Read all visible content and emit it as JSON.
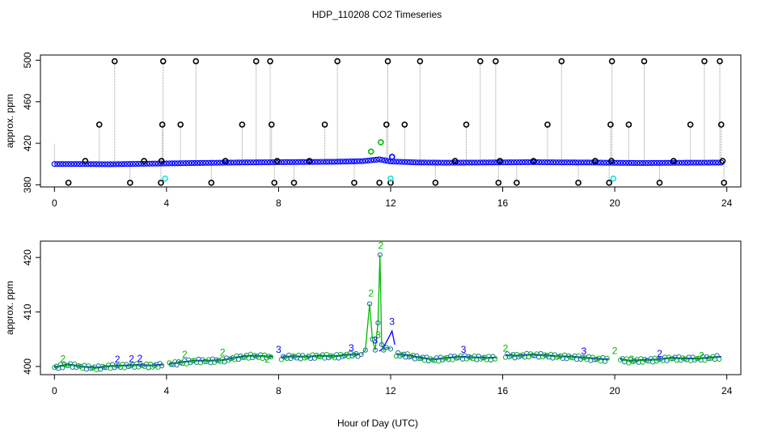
{
  "title": "HDP_110208  CO2 Timeseries",
  "xlabel": "Hour of Day (UTC)",
  "chart_data": [
    {
      "type": "scatter",
      "title": "HDP_110208  CO2 Timeseries",
      "ylabel": "approx. ppm",
      "xlim": [
        -0.5,
        24.5
      ],
      "ylim": [
        378,
        505
      ],
      "x_ticks": [
        "0",
        "4",
        "8",
        "12",
        "16",
        "20",
        "24"
      ],
      "y_ticks": [
        "380",
        "420",
        "460",
        "500"
      ],
      "grid": false,
      "colors": {
        "raw": "#000000",
        "mean": "#0000ff",
        "secondary": "#00bb00",
        "flag": "#22dddd"
      },
      "baseline": [
        [
          0,
          400
        ],
        [
          1,
          400
        ],
        [
          2,
          399.8
        ],
        [
          3,
          400.2
        ],
        [
          4,
          400.6
        ],
        [
          5,
          401
        ],
        [
          6,
          401.3
        ],
        [
          7,
          401.6
        ],
        [
          8,
          401.8
        ],
        [
          9,
          402
        ],
        [
          10,
          402.2
        ],
        [
          11,
          402.8
        ],
        [
          11.6,
          404.5
        ],
        [
          12,
          402.5
        ],
        [
          13,
          401.5
        ],
        [
          14,
          401.3
        ],
        [
          15,
          401.4
        ],
        [
          16,
          401.6
        ],
        [
          17,
          401.8
        ],
        [
          18,
          401.6
        ],
        [
          19,
          401.5
        ],
        [
          20,
          401.2
        ],
        [
          21,
          401
        ],
        [
          22,
          401.2
        ],
        [
          23,
          401.3
        ],
        [
          23.8,
          401.4
        ]
      ],
      "spikes": [
        [
          1.6,
          438
        ],
        [
          2.15,
          499
        ],
        [
          2.7,
          382
        ],
        [
          3.2,
          403
        ],
        [
          3.8,
          382
        ],
        [
          3.85,
          438
        ],
        [
          3.88,
          499
        ],
        [
          4.5,
          438
        ],
        [
          5.05,
          499
        ],
        [
          5.6,
          382
        ],
        [
          6.1,
          403
        ],
        [
          6.7,
          438
        ],
        [
          7.2,
          499
        ],
        [
          7.7,
          499
        ],
        [
          7.75,
          438
        ],
        [
          7.85,
          382
        ],
        [
          8.55,
          382
        ],
        [
          9.1,
          403
        ],
        [
          9.65,
          438
        ],
        [
          10.1,
          499
        ],
        [
          10.7,
          382
        ],
        [
          11.85,
          438
        ],
        [
          11.9,
          499
        ],
        [
          12.5,
          438
        ],
        [
          13.05,
          499
        ],
        [
          13.6,
          382
        ],
        [
          14.3,
          403
        ],
        [
          14.7,
          438
        ],
        [
          15.2,
          499
        ],
        [
          15.75,
          499
        ],
        [
          15.85,
          382
        ],
        [
          16.5,
          382
        ],
        [
          17.1,
          403
        ],
        [
          17.6,
          438
        ],
        [
          18.1,
          499
        ],
        [
          18.7,
          382
        ],
        [
          19.3,
          403
        ],
        [
          19.8,
          382
        ],
        [
          19.85,
          438
        ],
        [
          19.9,
          499
        ],
        [
          20.5,
          438
        ],
        [
          21.05,
          499
        ],
        [
          21.6,
          382
        ],
        [
          22.1,
          403
        ],
        [
          22.7,
          438
        ],
        [
          23.2,
          499
        ],
        [
          23.75,
          499
        ],
        [
          23.8,
          438
        ],
        [
          23.9,
          382
        ]
      ],
      "base_circles": [
        [
          0.5,
          382
        ],
        [
          1.1,
          403
        ],
        [
          3.82,
          403
        ],
        [
          7.95,
          403
        ],
        [
          11.6,
          382
        ],
        [
          12.0,
          382
        ],
        [
          15.9,
          403
        ],
        [
          19.88,
          403
        ],
        [
          23.85,
          403
        ]
      ],
      "secondary_points": [
        [
          11.3,
          412
        ],
        [
          11.65,
          421
        ]
      ],
      "mean_points": [
        [
          12.05,
          407
        ]
      ],
      "flag_points": [
        [
          3.95,
          386
        ],
        [
          12.0,
          386
        ],
        [
          19.95,
          386
        ]
      ]
    },
    {
      "type": "scatter",
      "ylabel": "approx. ppm",
      "xlim": [
        -0.5,
        24.5
      ],
      "ylim": [
        398.5,
        423
      ],
      "x_ticks": [
        "0",
        "4",
        "8",
        "12",
        "16",
        "20",
        "24"
      ],
      "y_ticks": [
        "400",
        "410",
        "420"
      ],
      "grid": false,
      "series_markers": [
        "2",
        "3"
      ],
      "colors": {
        "series2": "#00bb00",
        "series3": "#0000ff",
        "points": "#1a6fa0"
      },
      "segments": [
        {
          "x": [
            0,
            0.5,
            1,
            1.5,
            2,
            2.5,
            3,
            3.5,
            3.9
          ],
          "y": [
            399.8,
            400.3,
            399.9,
            399.7,
            400,
            400.1,
            400.2,
            400.1,
            400.3
          ]
        },
        {
          "x": [
            4.1,
            4.5,
            5,
            5.5,
            6,
            6.5,
            7,
            7.5,
            7.8
          ],
          "y": [
            400.4,
            400.7,
            401,
            401,
            401.1,
            401.6,
            401.9,
            401.8,
            401.7
          ]
        },
        {
          "x": [
            8.1,
            8.5,
            9,
            9.5,
            10,
            10.5,
            10.9
          ],
          "y": [
            401.6,
            401.8,
            401.7,
            401.9,
            401.8,
            402.1,
            402.2
          ]
        },
        {
          "x": [
            12.2,
            12.6,
            13,
            13.5,
            14,
            14.5,
            15,
            15.5,
            15.8
          ],
          "y": [
            402.2,
            402,
            401.6,
            401.2,
            401.5,
            401.7,
            401.6,
            401.5,
            401.6
          ]
        },
        {
          "x": [
            16.1,
            16.5,
            17,
            17.5,
            18,
            18.5,
            19,
            19.5,
            19.8
          ],
          "y": [
            402,
            401.9,
            402.1,
            402,
            401.8,
            401.7,
            401.5,
            401.3,
            401.2
          ]
        },
        {
          "x": [
            20.2,
            20.5,
            21,
            21.5,
            22,
            22.5,
            23,
            23.5,
            23.8
          ],
          "y": [
            401.3,
            401,
            401.1,
            401.2,
            401.5,
            401.4,
            401.4,
            401.6,
            401.7
          ]
        }
      ],
      "spike_series2": {
        "x": [
          10.95,
          11.1,
          11.25,
          11.35,
          11.45,
          11.55,
          11.62,
          11.68,
          11.75,
          11.85,
          12.0
        ],
        "y": [
          402.2,
          403,
          411.5,
          405,
          403,
          408,
          420.5,
          404,
          403,
          403.5,
          403.2
        ]
      },
      "spike_series3": {
        "x": [
          11.6,
          11.75,
          11.85,
          11.95,
          12.05,
          12.15
        ],
        "y": [
          402.8,
          403.5,
          404.5,
          405.5,
          406.5,
          404
        ]
      },
      "digit_labels": [
        {
          "text": "2",
          "x": 11.3,
          "y": 412.8,
          "series": "2"
        },
        {
          "text": "2",
          "x": 11.65,
          "y": 421.6,
          "series": "2"
        },
        {
          "text": "3",
          "x": 12.05,
          "y": 407.6,
          "series": "3"
        },
        {
          "text": "3",
          "x": 11.55,
          "y": 405.2,
          "series": "2"
        },
        {
          "text": "3",
          "x": 11.45,
          "y": 404.2,
          "series": "3"
        },
        {
          "text": "2",
          "x": 0.3,
          "y": 400.8,
          "series": "2"
        },
        {
          "text": "2",
          "x": 2.25,
          "y": 400.7,
          "series": "3"
        },
        {
          "text": "2",
          "x": 2.75,
          "y": 400.8,
          "series": "3"
        },
        {
          "text": "2",
          "x": 3.05,
          "y": 400.9,
          "series": "3"
        },
        {
          "text": "2",
          "x": 4.65,
          "y": 401.6,
          "series": "2"
        },
        {
          "text": "2",
          "x": 6.0,
          "y": 402.0,
          "series": "2"
        },
        {
          "text": "2",
          "x": 7.6,
          "y": 400.7,
          "series": "2"
        },
        {
          "text": "3",
          "x": 8.0,
          "y": 402.5,
          "series": "3"
        },
        {
          "text": "3",
          "x": 10.6,
          "y": 402.8,
          "series": "3"
        },
        {
          "text": "3",
          "x": 14.6,
          "y": 402.5,
          "series": "3"
        },
        {
          "text": "2",
          "x": 16.1,
          "y": 402.7,
          "series": "2"
        },
        {
          "text": "3",
          "x": 18.9,
          "y": 402.2,
          "series": "3"
        },
        {
          "text": "2",
          "x": 20.0,
          "y": 402.3,
          "series": "2"
        },
        {
          "text": "2",
          "x": 20.6,
          "y": 400.7,
          "series": "2"
        },
        {
          "text": "2",
          "x": 21.6,
          "y": 401.8,
          "series": "3"
        },
        {
          "text": "2",
          "x": 23.1,
          "y": 401.4,
          "series": "2"
        }
      ]
    }
  ]
}
